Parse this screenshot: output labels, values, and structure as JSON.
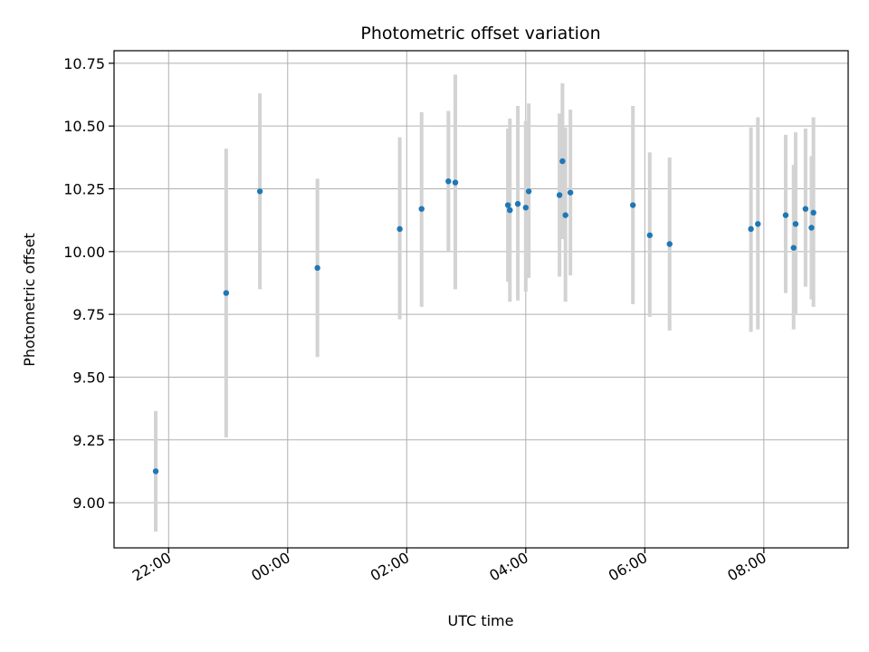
{
  "chart_data": {
    "type": "scatter",
    "title": "Photometric offset variation",
    "xlabel": "UTC time",
    "ylabel": "Photometric offset",
    "x_axis_kind": "time",
    "xlim": [
      "21:05",
      "09:25"
    ],
    "ylim": [
      8.82,
      10.8
    ],
    "grid": true,
    "x_ticks": [
      "22:00",
      "00:00",
      "02:00",
      "04:00",
      "06:00",
      "08:00"
    ],
    "y_ticks": [
      "9.00",
      "9.25",
      "9.50",
      "9.75",
      "10.00",
      "10.25",
      "10.50",
      "10.75"
    ],
    "colors": {
      "point": "#1f77b4",
      "errorbar": "#d3d3d3",
      "grid": "#b0b0b0"
    },
    "series": [
      {
        "points": [
          {
            "x": "21:47",
            "y": 9.125,
            "low": 8.885,
            "high": 9.365
          },
          {
            "x": "22:58",
            "y": 9.835,
            "low": 9.26,
            "high": 10.41
          },
          {
            "x": "23:32",
            "y": 10.24,
            "low": 9.85,
            "high": 10.63
          },
          {
            "x": "00:30",
            "y": 9.935,
            "low": 9.58,
            "high": 10.29
          },
          {
            "x": "01:53",
            "y": 10.09,
            "low": 9.73,
            "high": 10.455
          },
          {
            "x": "02:15",
            "y": 10.17,
            "low": 9.78,
            "high": 10.555
          },
          {
            "x": "02:42",
            "y": 10.28,
            "low": 10.0,
            "high": 10.56
          },
          {
            "x": "02:49",
            "y": 10.275,
            "low": 9.85,
            "high": 10.705
          },
          {
            "x": "03:42",
            "y": 10.185,
            "low": 9.88,
            "high": 10.49
          },
          {
            "x": "03:44",
            "y": 10.165,
            "low": 9.8,
            "high": 10.53
          },
          {
            "x": "03:52",
            "y": 10.19,
            "low": 9.805,
            "high": 10.58
          },
          {
            "x": "04:00",
            "y": 10.175,
            "low": 9.84,
            "high": 10.52
          },
          {
            "x": "04:03",
            "y": 10.24,
            "low": 9.895,
            "high": 10.59
          },
          {
            "x": "04:34",
            "y": 10.225,
            "low": 9.9,
            "high": 10.55
          },
          {
            "x": "04:37",
            "y": 10.36,
            "low": 10.05,
            "high": 10.67
          },
          {
            "x": "04:40",
            "y": 10.145,
            "low": 9.8,
            "high": 10.495
          },
          {
            "x": "04:45",
            "y": 10.235,
            "low": 9.905,
            "high": 10.565
          },
          {
            "x": "05:48",
            "y": 10.185,
            "low": 9.79,
            "high": 10.58
          },
          {
            "x": "06:05",
            "y": 10.065,
            "low": 9.74,
            "high": 10.395
          },
          {
            "x": "06:25",
            "y": 10.03,
            "low": 9.685,
            "high": 10.375
          },
          {
            "x": "07:47",
            "y": 10.09,
            "low": 9.68,
            "high": 10.495
          },
          {
            "x": "07:54",
            "y": 10.11,
            "low": 9.69,
            "high": 10.535
          },
          {
            "x": "08:22",
            "y": 10.145,
            "low": 9.835,
            "high": 10.465
          },
          {
            "x": "08:30",
            "y": 10.015,
            "low": 9.69,
            "high": 10.345
          },
          {
            "x": "08:32",
            "y": 10.11,
            "low": 9.75,
            "high": 10.475
          },
          {
            "x": "08:42",
            "y": 10.17,
            "low": 9.86,
            "high": 10.49
          },
          {
            "x": "08:48",
            "y": 10.095,
            "low": 9.81,
            "high": 10.38
          },
          {
            "x": "08:50",
            "y": 10.155,
            "low": 9.78,
            "high": 10.535
          }
        ]
      }
    ]
  }
}
